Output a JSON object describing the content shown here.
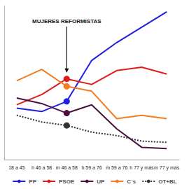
{
  "chart_data": {
    "type": "line",
    "annotation": {
      "text": "MUJERES REFORMISTAS",
      "category": "m 46 a 58"
    },
    "categories": [
      "18 a 45",
      "h 46 a 58",
      "m 46 a 58",
      "h 59 a 76",
      "m 59 a 76",
      "h 77 y más",
      "m 77 y más"
    ],
    "series": [
      {
        "name": "PP",
        "color": "#1f1fe0",
        "line_style": "solid",
        "values": [
          16.7,
          15.6,
          18.9,
          32.2,
          38,
          43,
          48
        ]
      },
      {
        "name": "PSOE",
        "color": "#e31a1a",
        "line_style": "solid",
        "values": [
          17.8,
          21.1,
          26.2,
          24.4,
          28.9,
          30,
          27.8
        ]
      },
      {
        "name": "UP",
        "color": "#4b0f3f",
        "line_style": "solid",
        "values": [
          20,
          18.2,
          15.1,
          17.8,
          10,
          4,
          3.6
        ]
      },
      {
        "name": "C´s",
        "color": "#f57c20",
        "line_style": "solid",
        "values": [
          25.6,
          29.3,
          23.8,
          22.2,
          13.3,
          14.4,
          13.3
        ]
      },
      {
        "name": "OT+BL",
        "color": "#333333",
        "line_style": "dotted",
        "values": [
          14.4,
          12.2,
          11.1,
          8.9,
          7.8,
          6,
          5.6
        ]
      }
    ],
    "ylim": [
      0,
      50
    ],
    "grid": false,
    "legend": "bottom",
    "tick_labels": "x"
  }
}
